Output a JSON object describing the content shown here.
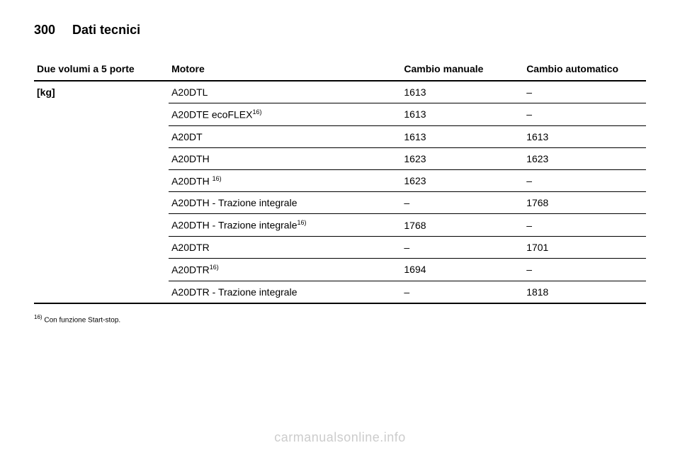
{
  "header": {
    "page_number": "300",
    "title": "Dati tecnici"
  },
  "table": {
    "columns": {
      "label": "Due volumi a 5 porte",
      "engine": "Motore",
      "manual": "Cambio manuale",
      "auto": "Cambio automatico"
    },
    "row_label": "[kg]",
    "rows": [
      {
        "engine_html": "A20DTL",
        "manual": "1613",
        "auto": "–"
      },
      {
        "engine_html": "A20DTE ecoFLEX<sup>16)</sup>",
        "manual": "1613",
        "auto": "–"
      },
      {
        "engine_html": "A20DT",
        "manual": "1613",
        "auto": "1613"
      },
      {
        "engine_html": "A20DTH",
        "manual": "1623",
        "auto": "1623"
      },
      {
        "engine_html": "A20DTH <sup>16)</sup>",
        "manual": "1623",
        "auto": "–"
      },
      {
        "engine_html": "A20DTH - Trazione integrale",
        "manual": "–",
        "auto": "1768"
      },
      {
        "engine_html": "A20DTH - Trazione integrale<sup>16)</sup>",
        "manual": "1768",
        "auto": "–"
      },
      {
        "engine_html": "A20DTR",
        "manual": "–",
        "auto": "1701"
      },
      {
        "engine_html": "A20DTR<sup>16)</sup>",
        "manual": "1694",
        "auto": "–"
      },
      {
        "engine_html": "A20DTR - Trazione integrale",
        "manual": "–",
        "auto": "1818"
      }
    ]
  },
  "footnote": {
    "marker": "16)",
    "text": "Con funzione Start-stop."
  },
  "watermark": "carmanualsonline.info"
}
